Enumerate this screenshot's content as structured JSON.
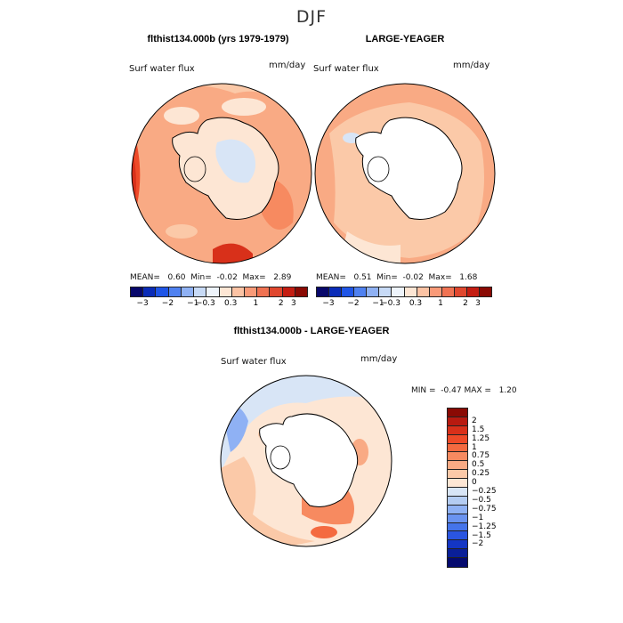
{
  "main_title": "DJF",
  "panels": {
    "left": {
      "title": "flthist134.000b (yrs 1979-1979)",
      "variable": "Surf water flux",
      "units": "mm/day",
      "stats": {
        "mean_label": "MEAN=",
        "mean": "0.60",
        "min_label": "Min=",
        "min": "-0.02",
        "max_label": "Max=",
        "max": "2.89"
      }
    },
    "right": {
      "title": "LARGE-YEAGER",
      "variable": "Surf water flux",
      "units": "mm/day",
      "stats": {
        "mean_label": "MEAN=",
        "mean": "0.51",
        "min_label": "Min=",
        "min": "-0.02",
        "max_label": "Max=",
        "max": "1.68"
      }
    },
    "diff": {
      "title": "flthist134.000b - LARGE-YEAGER",
      "variable": "Surf water flux",
      "units": "mm/day",
      "stats": {
        "min_label": "MIN =",
        "min": "-0.47",
        "max_label": "MAX =",
        "max": "1.20"
      }
    }
  },
  "colorbar_top": {
    "colors": [
      "#08086b",
      "#0a2cb8",
      "#1f55e6",
      "#4f81f0",
      "#8fb1f4",
      "#c7daf6",
      "#eef4fb",
      "#fde6d4",
      "#fcc3a4",
      "#f99a78",
      "#f07252",
      "#e0472e",
      "#c41d12",
      "#8a0a04"
    ],
    "labels": [
      "-3",
      "-2",
      "-1",
      "-0.3",
      "0.3",
      "1",
      "2",
      "3"
    ]
  },
  "colorbar_diff": {
    "colors": [
      "#8a0a04",
      "#b81a10",
      "#d8301a",
      "#ee4a28",
      "#f46a40",
      "#f78a60",
      "#f9aa84",
      "#fbc9a8",
      "#fde6d4",
      "#d8e5f6",
      "#b4ccf2",
      "#8fb1f4",
      "#6a93f0",
      "#4574ea",
      "#2a55e0",
      "#1436c4",
      "#0a1f98",
      "#050a6e"
    ],
    "labels": [
      "2",
      "1.5",
      "1.25",
      "1",
      "0.75",
      "0.5",
      "0.25",
      "0",
      "-0.25",
      "-0.5",
      "-0.75",
      "-1",
      "-1.25",
      "-1.5",
      "-2"
    ]
  }
}
